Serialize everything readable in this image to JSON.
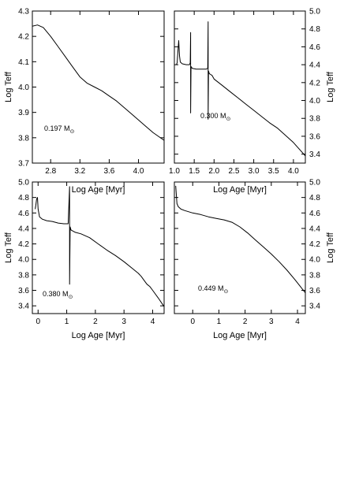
{
  "chart_data": [
    {
      "type": "line",
      "panel": "top-left",
      "title": "",
      "xlabel": "Log Age [Myr]",
      "ylabel": "Log Teff",
      "ylabel_side": "left",
      "annotation_value": "0.197",
      "annotation_unit": "M",
      "annotation_unit_sub": "⊙",
      "xlim": [
        2.55,
        4.35
      ],
      "ylim": [
        3.7,
        4.3
      ],
      "xticks": [
        2.8,
        3.2,
        3.6,
        4.0
      ],
      "xtick_labels": [
        "2.8",
        "3.2",
        "3.6",
        "4.0"
      ],
      "yticks": [
        3.7,
        3.8,
        3.9,
        4.0,
        4.1,
        4.2,
        4.3
      ],
      "ytick_labels": [
        "3.7",
        "3.8",
        "3.9",
        "4.0",
        "4.1",
        "4.2",
        "4.3"
      ],
      "series": [
        {
          "x": [
            2.55,
            2.62,
            2.7,
            2.8,
            2.9,
            3.0,
            3.1,
            3.2,
            3.3,
            3.4,
            3.5,
            3.6,
            3.7,
            3.8,
            3.9,
            4.0,
            4.1,
            4.2,
            4.35
          ],
          "y": [
            4.24,
            4.245,
            4.235,
            4.2,
            4.16,
            4.12,
            4.08,
            4.04,
            4.015,
            4.0,
            3.985,
            3.965,
            3.945,
            3.92,
            3.895,
            3.87,
            3.845,
            3.82,
            3.79
          ]
        }
      ]
    },
    {
      "type": "line",
      "panel": "top-right",
      "title": "",
      "xlabel": "Log Age [Myr]",
      "ylabel": "Log Teff",
      "ylabel_side": "right",
      "annotation_value": "0.300",
      "annotation_unit": "M",
      "annotation_unit_sub": "⊙",
      "xlim": [
        1.0,
        4.3
      ],
      "ylim": [
        3.3,
        5.0
      ],
      "xticks": [
        1.0,
        1.5,
        2.0,
        2.5,
        3.0,
        3.5,
        4.0
      ],
      "xtick_labels": [
        "1.0",
        "1.5",
        "2.0",
        "2.5",
        "3.0",
        "3.5",
        "4.0"
      ],
      "yticks": [
        3.4,
        3.6,
        3.8,
        4.0,
        4.2,
        4.4,
        4.6,
        4.8,
        5.0
      ],
      "ytick_labels": [
        "3.4",
        "3.6",
        "3.8",
        "4.0",
        "4.2",
        "4.4",
        "4.6",
        "4.8",
        "5.0"
      ],
      "series": [
        {
          "x": [
            1.05,
            1.07,
            1.09,
            1.11,
            1.13,
            1.15,
            1.2,
            1.3,
            1.38,
            1.4,
            1.41,
            1.41,
            1.42,
            1.45,
            1.55,
            1.7,
            1.8,
            1.84,
            1.85,
            1.85,
            1.86,
            1.88,
            1.95,
            2.0,
            2.2,
            2.4,
            2.6,
            2.8,
            3.0,
            3.2,
            3.4,
            3.6,
            3.8,
            4.0,
            4.1,
            4.3
          ],
          "y": [
            4.4,
            4.42,
            4.55,
            4.67,
            4.5,
            4.43,
            4.41,
            4.4,
            4.4,
            4.42,
            4.76,
            3.86,
            4.38,
            4.36,
            4.35,
            4.35,
            4.35,
            4.36,
            4.88,
            3.79,
            4.33,
            4.3,
            4.28,
            4.24,
            4.17,
            4.1,
            4.03,
            3.96,
            3.89,
            3.82,
            3.75,
            3.69,
            3.61,
            3.53,
            3.48,
            3.38
          ]
        }
      ]
    },
    {
      "type": "line",
      "panel": "bottom-left",
      "title": "",
      "xlabel": "Log Age [Myr]",
      "ylabel": "Log Teff",
      "ylabel_side": "left",
      "annotation_value": "0.380",
      "annotation_unit": "M",
      "annotation_unit_sub": "⊙",
      "xlim": [
        -0.2,
        4.4
      ],
      "ylim": [
        3.3,
        5.0
      ],
      "xticks": [
        0,
        1,
        2,
        3,
        4
      ],
      "xtick_labels": [
        "0",
        "1",
        "2",
        "3",
        "4"
      ],
      "yticks": [
        3.4,
        3.6,
        3.8,
        4.0,
        4.2,
        4.4,
        4.6,
        4.8,
        5.0
      ],
      "ytick_labels": [
        "3.4",
        "3.6",
        "3.8",
        "4.0",
        "4.2",
        "4.4",
        "4.6",
        "4.8",
        "5.0"
      ],
      "series": [
        {
          "x": [
            -0.1,
            -0.08,
            -0.05,
            -0.02,
            0.0,
            0.05,
            0.15,
            0.3,
            0.5,
            0.7,
            0.9,
            1.05,
            1.1,
            1.1,
            1.12,
            1.15,
            1.3,
            1.5,
            1.8,
            2.1,
            2.4,
            2.7,
            3.0,
            3.3,
            3.5,
            3.6,
            3.7,
            3.8,
            3.9,
            4.0,
            4.2,
            4.4
          ],
          "y": [
            4.65,
            4.7,
            4.78,
            4.8,
            4.65,
            4.55,
            4.52,
            4.5,
            4.49,
            4.47,
            4.46,
            4.46,
            4.94,
            3.68,
            4.42,
            4.38,
            4.35,
            4.33,
            4.28,
            4.2,
            4.12,
            4.05,
            3.97,
            3.88,
            3.82,
            3.78,
            3.73,
            3.68,
            3.65,
            3.6,
            3.5,
            3.39
          ]
        }
      ]
    },
    {
      "type": "line",
      "panel": "bottom-right",
      "title": "",
      "xlabel": "Log Age [Myr]",
      "ylabel": "Log Teff",
      "ylabel_side": "right",
      "annotation_value": "0.449",
      "annotation_unit": "M",
      "annotation_unit_sub": "⊙",
      "xlim": [
        -0.7,
        4.3
      ],
      "ylim": [
        3.3,
        5.0
      ],
      "xticks": [
        0,
        1,
        2,
        3,
        4
      ],
      "xtick_labels": [
        "0",
        "1",
        "2",
        "3",
        "4"
      ],
      "yticks": [
        3.4,
        3.6,
        3.8,
        4.0,
        4.2,
        4.4,
        4.6,
        4.8,
        5.0
      ],
      "ytick_labels": [
        "3.4",
        "3.6",
        "3.8",
        "4.0",
        "4.2",
        "4.4",
        "4.6",
        "4.8",
        "5.0"
      ],
      "series": [
        {
          "x": [
            -0.65,
            -0.62,
            -0.6,
            -0.55,
            -0.45,
            -0.3,
            0.0,
            0.3,
            0.6,
            0.9,
            1.2,
            1.5,
            1.8,
            2.1,
            2.4,
            2.7,
            3.0,
            3.3,
            3.6,
            3.9,
            4.2,
            4.3
          ],
          "y": [
            4.95,
            4.8,
            4.72,
            4.68,
            4.65,
            4.63,
            4.6,
            4.58,
            4.55,
            4.53,
            4.51,
            4.48,
            4.42,
            4.34,
            4.25,
            4.16,
            4.07,
            3.97,
            3.86,
            3.74,
            3.61,
            3.57
          ]
        }
      ]
    }
  ]
}
